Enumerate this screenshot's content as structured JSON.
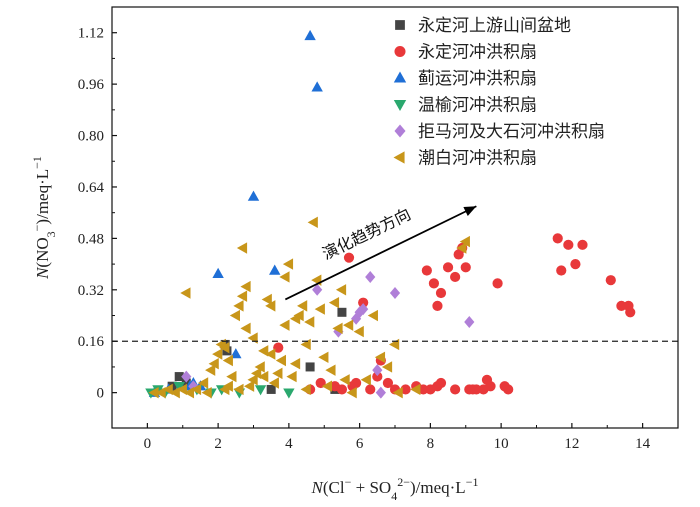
{
  "chart_data": {
    "type": "scatter",
    "xlabel_parts": [
      "N",
      "(Cl",
      "−",
      " + SO",
      "4",
      "2−",
      ")/meq·L",
      "−1"
    ],
    "ylabel_parts": [
      "N",
      "(NO",
      "3",
      "−",
      ")/meq·L",
      "−1"
    ],
    "xlim": [
      -1,
      15
    ],
    "ylim": [
      -0.11,
      1.2
    ],
    "xticks": [
      0,
      2,
      4,
      6,
      8,
      10,
      12,
      14
    ],
    "yticks": [
      0,
      0.16,
      0.32,
      0.48,
      0.64,
      0.8,
      0.96,
      1.12
    ],
    "ytick_labels": [
      "0",
      "0.16",
      "0.32",
      "0.48",
      "0.64",
      "0.80",
      "0.96",
      "1.12"
    ],
    "threshold": 0.16,
    "annotation": {
      "text": "演化趋势方向",
      "arrow_from": [
        3.9,
        0.29
      ],
      "arrow_to": [
        9.3,
        0.58
      ]
    },
    "legend_position": "top-right",
    "series": [
      {
        "name": "永定河上游山间盆地",
        "marker": "square",
        "color": "#444444",
        "points": [
          [
            0.7,
            0.02
          ],
          [
            0.9,
            0.05
          ],
          [
            1.1,
            0.03
          ],
          [
            2.2,
            0.15
          ],
          [
            2.25,
            0.13
          ],
          [
            3.5,
            0.01
          ],
          [
            4.6,
            0.08
          ],
          [
            5.5,
            0.25
          ],
          [
            5.3,
            0.01
          ]
        ]
      },
      {
        "name": "永定河冲洪积扇",
        "marker": "circle",
        "color": "#e8383a",
        "points": [
          [
            3.7,
            0.14
          ],
          [
            4.6,
            0.01
          ],
          [
            4.9,
            0.03
          ],
          [
            5.3,
            0.02
          ],
          [
            5.5,
            0.01
          ],
          [
            5.7,
            0.42
          ],
          [
            5.8,
            0.02
          ],
          [
            5.9,
            0.03
          ],
          [
            6.1,
            0.28
          ],
          [
            6.3,
            0.01
          ],
          [
            6.5,
            0.05
          ],
          [
            6.6,
            0.1
          ],
          [
            6.8,
            0.03
          ],
          [
            7.0,
            0.01
          ],
          [
            7.3,
            0.01
          ],
          [
            7.6,
            0.02
          ],
          [
            7.8,
            0.01
          ],
          [
            8.0,
            0.01
          ],
          [
            8.2,
            0.02
          ],
          [
            8.3,
            0.03
          ],
          [
            8.1,
            0.34
          ],
          [
            7.9,
            0.38
          ],
          [
            8.2,
            0.27
          ],
          [
            8.3,
            0.31
          ],
          [
            8.5,
            0.39
          ],
          [
            8.7,
            0.36
          ],
          [
            8.8,
            0.43
          ],
          [
            8.9,
            0.45
          ],
          [
            9.0,
            0.39
          ],
          [
            9.3,
            0.01
          ],
          [
            8.7,
            0.01
          ],
          [
            9.1,
            0.01
          ],
          [
            9.5,
            0.01
          ],
          [
            9.7,
            0.02
          ],
          [
            9.9,
            0.34
          ],
          [
            10.1,
            0.02
          ],
          [
            10.2,
            0.01
          ],
          [
            9.6,
            0.04
          ],
          [
            9.2,
            0.01
          ],
          [
            11.6,
            0.48
          ],
          [
            11.7,
            0.38
          ],
          [
            11.9,
            0.46
          ],
          [
            12.1,
            0.4
          ],
          [
            12.3,
            0.46
          ],
          [
            13.1,
            0.35
          ],
          [
            13.4,
            0.27
          ],
          [
            13.6,
            0.27
          ],
          [
            13.65,
            0.25
          ]
        ]
      },
      {
        "name": "蓟运河冲洪积扇",
        "marker": "triangle-up",
        "color": "#1f6fd6",
        "points": [
          [
            0.2,
            0.0
          ],
          [
            0.6,
            0.01
          ],
          [
            1.2,
            0.02
          ],
          [
            1.3,
            0.03
          ],
          [
            1.5,
            0.02
          ],
          [
            2.0,
            0.37
          ],
          [
            2.5,
            0.12
          ],
          [
            3.0,
            0.61
          ],
          [
            3.6,
            0.38
          ],
          [
            4.6,
            1.11
          ],
          [
            4.8,
            0.95
          ]
        ]
      },
      {
        "name": "温榆河冲洪积扇",
        "marker": "triangle-down",
        "color": "#2aa86e",
        "points": [
          [
            0.1,
            0.0
          ],
          [
            0.3,
            0.01
          ],
          [
            0.5,
            0.0
          ],
          [
            0.9,
            0.02
          ],
          [
            1.4,
            0.01
          ],
          [
            1.8,
            0.0
          ],
          [
            2.1,
            0.01
          ],
          [
            2.6,
            0.0
          ],
          [
            3.2,
            0.01
          ],
          [
            4.0,
            0.0
          ]
        ]
      },
      {
        "name": "拒马河及大石河冲洪积扇",
        "marker": "diamond",
        "color": "#b07fd8",
        "points": [
          [
            1.1,
            0.05
          ],
          [
            1.3,
            0.02
          ],
          [
            4.8,
            0.32
          ],
          [
            5.4,
            0.19
          ],
          [
            5.9,
            0.23
          ],
          [
            6.0,
            0.25
          ],
          [
            6.1,
            0.26
          ],
          [
            6.3,
            0.36
          ],
          [
            6.5,
            0.07
          ],
          [
            7.0,
            0.31
          ],
          [
            9.1,
            0.22
          ],
          [
            6.6,
            0.0
          ]
        ]
      },
      {
        "name": "潮白河冲洪积扇",
        "marker": "triangle-left",
        "color": "#c8961a",
        "points": [
          [
            0.2,
            0.0
          ],
          [
            0.4,
            0.0
          ],
          [
            0.6,
            0.01
          ],
          [
            0.8,
            0.0
          ],
          [
            1.0,
            0.01
          ],
          [
            1.1,
            0.31
          ],
          [
            1.2,
            0.0
          ],
          [
            1.4,
            0.01
          ],
          [
            1.6,
            0.03
          ],
          [
            1.8,
            0.07
          ],
          [
            1.9,
            0.09
          ],
          [
            2.0,
            0.12
          ],
          [
            2.1,
            0.15
          ],
          [
            2.2,
            0.14
          ],
          [
            2.3,
            0.1
          ],
          [
            2.2,
            0.01
          ],
          [
            2.4,
            0.05
          ],
          [
            2.5,
            0.24
          ],
          [
            2.6,
            0.27
          ],
          [
            2.7,
            0.3
          ],
          [
            2.8,
            0.33
          ],
          [
            2.7,
            0.45
          ],
          [
            2.8,
            0.2
          ],
          [
            2.9,
            0.02
          ],
          [
            3.0,
            0.04
          ],
          [
            3.1,
            0.06
          ],
          [
            3.2,
            0.08
          ],
          [
            3.3,
            0.05
          ],
          [
            3.4,
            0.29
          ],
          [
            3.5,
            0.27
          ],
          [
            3.6,
            0.03
          ],
          [
            3.7,
            0.06
          ],
          [
            3.8,
            0.1
          ],
          [
            3.9,
            0.21
          ],
          [
            3.9,
            0.36
          ],
          [
            4.0,
            0.4
          ],
          [
            4.1,
            0.05
          ],
          [
            4.2,
            0.23
          ],
          [
            4.3,
            0.24
          ],
          [
            4.4,
            0.27
          ],
          [
            4.5,
            0.01
          ],
          [
            4.5,
            0.15
          ],
          [
            4.6,
            0.22
          ],
          [
            4.7,
            0.53
          ],
          [
            4.8,
            0.35
          ],
          [
            4.9,
            0.26
          ],
          [
            5.0,
            0.11
          ],
          [
            5.1,
            0.02
          ],
          [
            5.2,
            0.07
          ],
          [
            5.3,
            0.28
          ],
          [
            5.4,
            0.2
          ],
          [
            5.5,
            0.32
          ],
          [
            5.6,
            0.04
          ],
          [
            5.7,
            0.21
          ],
          [
            6.0,
            0.19
          ],
          [
            6.2,
            0.04
          ],
          [
            6.4,
            0.24
          ],
          [
            6.6,
            0.11
          ],
          [
            6.8,
            0.08
          ],
          [
            7.0,
            0.15
          ],
          [
            7.1,
            0.0
          ],
          [
            7.6,
            0.01
          ],
          [
            8.9,
            0.45
          ],
          [
            9.0,
            0.47
          ],
          [
            3.0,
            0.17
          ],
          [
            2.3,
            0.02
          ],
          [
            1.7,
            0.0
          ],
          [
            2.6,
            0.01
          ],
          [
            3.5,
            0.12
          ],
          [
            4.2,
            0.09
          ],
          [
            5.8,
            0.0
          ],
          [
            3.3,
            0.13
          ]
        ]
      }
    ]
  }
}
